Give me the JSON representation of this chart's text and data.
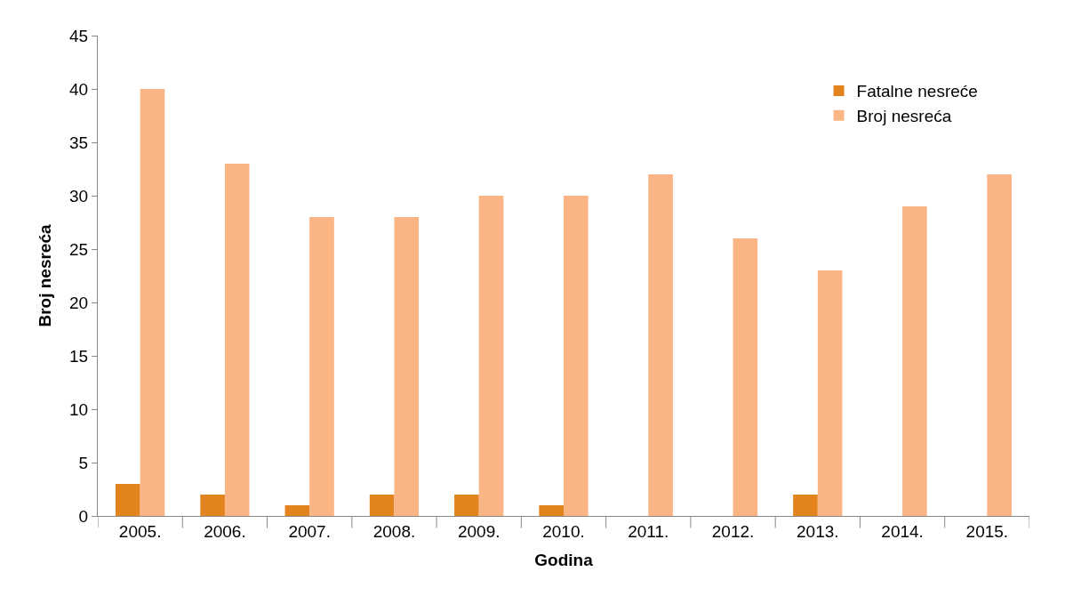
{
  "chart_data": {
    "type": "bar",
    "xlabel": "Godina",
    "ylabel": "Broj nesreća",
    "categories": [
      "2005.",
      "2006.",
      "2007.",
      "2008.",
      "2009.",
      "2010.",
      "2011.",
      "2012.",
      "2013.",
      "2014.",
      "2015."
    ],
    "series": [
      {
        "name": "Fatalne nesreće",
        "color": "#e2831e",
        "values": [
          3,
          2,
          1,
          2,
          2,
          1,
          0,
          0,
          2,
          0,
          0
        ]
      },
      {
        "name": "Broj nesreća",
        "color": "#fbb585",
        "values": [
          40,
          33,
          28,
          28,
          30,
          30,
          32,
          26,
          23,
          29,
          32
        ]
      }
    ],
    "ylim": [
      0,
      45
    ],
    "yticks": [
      0,
      5,
      10,
      15,
      20,
      25,
      30,
      35,
      40,
      45
    ],
    "legend": "top right"
  }
}
